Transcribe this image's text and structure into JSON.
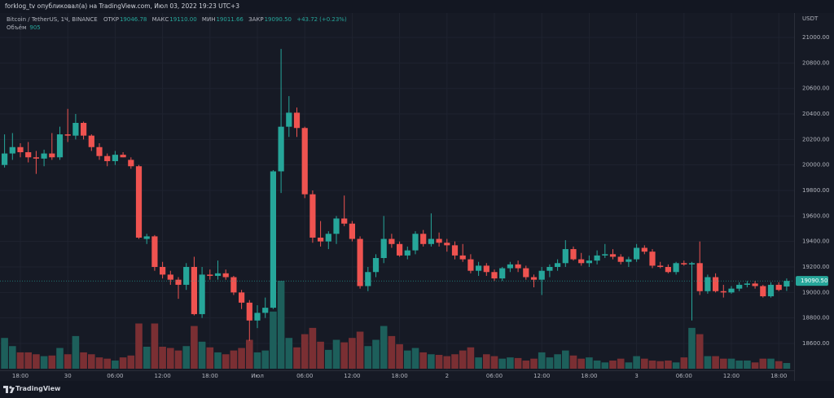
{
  "header": {
    "publisher": "forklog_tv опубликовал(а) на TradingView.com, Июл 03, 2022 19:23 UTC+3",
    "symbol": "Bitcoin / TetherUS, 1Ч, BINANCE",
    "ohlc": [
      {
        "name": "ОТКР",
        "price": 19046.78
      },
      {
        "name": "МАКС",
        "price": {
          "value": 19110,
          "label": "19110.00"
        }
      },
      {
        "name": "МИН",
        "price": 19011.66
      },
      {
        "name": "ЗАКР",
        "price": {
          "value": 19090.5,
          "label": "19090.50"
        }
      }
    ],
    "change": {
      "value": 43.72,
      "label": "+43.72"
    },
    "change_pct": {
      "value": 0.23,
      "label": "(+0.23%)"
    },
    "volume_name": "Объём",
    "volume": 905
  },
  "axis_unit": "USDT",
  "footer": "TradingView",
  "chart_data": {
    "type": "candlestick",
    "up_color": "#26a69a",
    "down_color": "#ef5350",
    "volume_up_color": "#1d5f5b",
    "volume_down_color": "#7a2f33",
    "grid": true,
    "categories": [
      null,
      null,
      "18:00",
      null,
      null,
      null,
      null,
      null,
      "30",
      null,
      null,
      null,
      null,
      null,
      "06:00",
      null,
      null,
      null,
      null,
      null,
      "12:00",
      null,
      null,
      null,
      null,
      null,
      "18:00",
      null,
      null,
      null,
      null,
      null,
      "Июл",
      null,
      null,
      null,
      null,
      null,
      "06:00",
      null,
      null,
      null,
      null,
      null,
      "12:00",
      null,
      null,
      null,
      null,
      null,
      "18:00",
      null,
      null,
      null,
      null,
      null,
      "2",
      null,
      null,
      null,
      null,
      null,
      "06:00",
      null,
      null,
      null,
      null,
      null,
      "12:00",
      null,
      null,
      null,
      null,
      null,
      "18:00",
      null,
      null,
      null,
      null,
      null,
      "3",
      null,
      null,
      null,
      null,
      null,
      "06:00",
      null,
      null,
      null,
      null,
      null,
      "12:00",
      null,
      null,
      null,
      null,
      null,
      "18:00",
      null
    ],
    "open": [
      20000,
      20090,
      20140,
      20100,
      20060,
      20050,
      20090,
      20060,
      20240,
      20230,
      20330,
      20230,
      20140,
      20070,
      20030,
      20080,
      20040,
      19990,
      19420,
      19440,
      19200,
      19140,
      19100,
      19060,
      19200,
      18830,
      19140,
      19130,
      19150,
      19120,
      19000,
      18920,
      18780,
      18840,
      18880,
      19950,
      20300,
      20410,
      20290,
      19770,
      19430,
      19400,
      19460,
      19580,
      19540,
      19420,
      19050,
      19160,
      19270,
      19420,
      19380,
      19290,
      19330,
      19460,
      19380,
      19420,
      19390,
      19370,
      19290,
      19260,
      19170,
      19210,
      19160,
      19110,
      19190,
      19220,
      19190,
      19120,
      19100,
      19170,
      19200,
      19230,
      19340,
      19260,
      19230,
      19250,
      19290,
      19300,
      19280,
      19240,
      19260,
      19350,
      19320,
      19210,
      19200,
      19160,
      19230,
      19220,
      19230,
      19010,
      19120,
      19010,
      19000,
      19030,
      19060,
      19070,
      19050,
      18970,
      19060,
      19046.78
    ],
    "high": [
      20240,
      20250,
      20170,
      20180,
      20110,
      20120,
      20250,
      20300,
      20440,
      20400,
      20340,
      20240,
      20170,
      20090,
      20110,
      20100,
      20060,
      20000,
      19460,
      19450,
      19240,
      19170,
      19120,
      19230,
      19280,
      19200,
      19180,
      19250,
      19180,
      19130,
      19020,
      18940,
      18900,
      18960,
      19960,
      20910,
      20540,
      20450,
      20300,
      19800,
      19560,
      19480,
      19600,
      19760,
      19560,
      19440,
      19200,
      19300,
      19600,
      19460,
      19400,
      19360,
      19480,
      19490,
      19620,
      19470,
      19420,
      19400,
      19380,
      19300,
      19240,
      19230,
      19180,
      19200,
      19240,
      19250,
      19210,
      19140,
      19200,
      19220,
      19260,
      19410,
      19360,
      19310,
      19290,
      19330,
      19380,
      19340,
      19300,
      19280,
      19380,
      19370,
      19340,
      19240,
      19220,
      19240,
      19250,
      19240,
      19400,
      19140,
      19150,
      19060,
      19050,
      19080,
      19090,
      19090,
      19060,
      19080,
      19080,
      19110
    ],
    "low": [
      19980,
      20040,
      20060,
      20020,
      19930,
      19990,
      20040,
      20040,
      20180,
      20200,
      20200,
      20110,
      20040,
      19990,
      20000,
      20060,
      19970,
      19420,
      19380,
      19170,
      19110,
      19060,
      18950,
      19020,
      18820,
      18800,
      19100,
      19100,
      19100,
      18980,
      18870,
      18620,
      18720,
      18800,
      18870,
      19780,
      20220,
      20220,
      19740,
      19390,
      19360,
      19340,
      19380,
      19520,
      19400,
      19030,
      19010,
      19120,
      19230,
      19350,
      19280,
      19260,
      19300,
      19360,
      19360,
      19360,
      19320,
      19260,
      19240,
      19150,
      19130,
      19130,
      19090,
      19090,
      19160,
      19160,
      19100,
      19040,
      18980,
      19120,
      19170,
      19200,
      19250,
      19210,
      19200,
      19220,
      19270,
      19260,
      19220,
      19200,
      19240,
      19300,
      19190,
      19190,
      19150,
      19140,
      19210,
      18780,
      18980,
      18990,
      19000,
      18960,
      18990,
      19010,
      19040,
      19030,
      18960,
      18960,
      19010,
      19011.66
    ],
    "close": [
      20090,
      20140,
      20100,
      20060,
      20050,
      20090,
      20060,
      20240,
      20230,
      20330,
      20230,
      20140,
      20070,
      20030,
      20080,
      20060,
      19990,
      19430,
      19440,
      19200,
      19140,
      19100,
      19060,
      19200,
      18830,
      19140,
      19130,
      19150,
      19120,
      19000,
      18920,
      18780,
      18840,
      18880,
      19950,
      20300,
      20410,
      20290,
      19770,
      19430,
      19400,
      19460,
      19580,
      19540,
      19420,
      19050,
      19160,
      19270,
      19420,
      19380,
      19290,
      19330,
      19460,
      19380,
      19420,
      19390,
      19370,
      19290,
      19260,
      19170,
      19210,
      19160,
      19110,
      19190,
      19220,
      19190,
      19120,
      19100,
      19170,
      19200,
      19230,
      19340,
      19260,
      19230,
      19250,
      19290,
      19300,
      19280,
      19240,
      19260,
      19350,
      19320,
      19210,
      19200,
      19160,
      19230,
      19220,
      19230,
      19010,
      19120,
      19010,
      19000,
      19030,
      19060,
      19070,
      19050,
      18970,
      19060,
      19020,
      19090.5
    ],
    "volume": [
      4900,
      3600,
      2600,
      2600,
      2300,
      2000,
      2100,
      3300,
      2300,
      5200,
      2600,
      2300,
      1800,
      1600,
      1300,
      1800,
      2100,
      7200,
      3500,
      7200,
      3500,
      3300,
      2900,
      3600,
      6800,
      4300,
      3400,
      2600,
      2300,
      2900,
      3300,
      4600,
      2600,
      2900,
      9100,
      14000,
      4900,
      3400,
      5500,
      6500,
      4300,
      3000,
      4600,
      4200,
      4900,
      5900,
      3600,
      4600,
      6800,
      5200,
      3900,
      2900,
      3300,
      2600,
      2300,
      2200,
      2000,
      2300,
      2900,
      3400,
      1800,
      2300,
      2000,
      1600,
      1800,
      1700,
      1300,
      1600,
      2600,
      1800,
      2300,
      2900,
      2100,
      1600,
      1800,
      1300,
      1000,
      1300,
      1600,
      1000,
      2000,
      1600,
      1300,
      1200,
      1300,
      1000,
      1800,
      6500,
      5500,
      2000,
      2000,
      1600,
      1600,
      1300,
      1300,
      1000,
      1600,
      1600,
      1200,
      905
    ],
    "ylim": [
      18402,
      21230
    ],
    "yticks": [
      {
        "value": 18600,
        "label": "18600.00"
      },
      {
        "value": 18800,
        "label": "18800.00"
      },
      {
        "value": 19000,
        "label": "19000.00"
      },
      {
        "value": 19200,
        "label": "19200.00"
      },
      {
        "value": 19400,
        "label": "19400.00"
      },
      {
        "value": 19600,
        "label": "19600.00"
      },
      {
        "value": 19800,
        "label": "19800.00"
      },
      {
        "value": 20000,
        "label": "20000.00"
      },
      {
        "value": 20200,
        "label": "20200.00"
      },
      {
        "value": 20400,
        "label": "20400.00"
      },
      {
        "value": 20600,
        "label": "20600.00"
      },
      {
        "value": 20800,
        "label": "20800.00"
      },
      {
        "value": 21000,
        "label": "21000.00"
      }
    ],
    "last_price": {
      "value": 19090.5,
      "label": "19090.50"
    }
  }
}
